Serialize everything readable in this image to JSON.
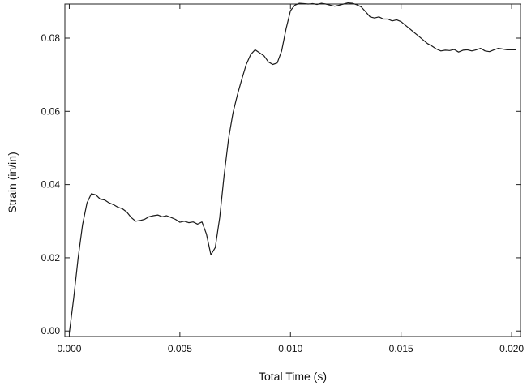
{
  "chart_data": {
    "type": "line",
    "xlabel": "Total Time (s)",
    "ylabel": "Strain (in/in)",
    "xlim": [
      -0.0002,
      0.0204
    ],
    "ylim": [
      -0.0015,
      0.0893
    ],
    "x_ticks": [
      0.0,
      0.005,
      0.01,
      0.015,
      0.02
    ],
    "x_tick_labels": [
      "0.000",
      "0.005",
      "0.010",
      "0.015",
      "0.020"
    ],
    "y_ticks": [
      0.0,
      0.02,
      0.04,
      0.06,
      0.08
    ],
    "y_tick_labels": [
      "0.00",
      "0.02",
      "0.04",
      "0.06",
      "0.08"
    ],
    "grid": false,
    "series": [
      {
        "color": "#1a1a1a",
        "x": [
          0.0,
          0.0002,
          0.0004,
          0.0006,
          0.0008,
          0.001,
          0.0012,
          0.0014,
          0.0016,
          0.0018,
          0.002,
          0.0022,
          0.0024,
          0.0026,
          0.0028,
          0.003,
          0.0032,
          0.0034,
          0.0036,
          0.0038,
          0.004,
          0.0042,
          0.0044,
          0.0046,
          0.0048,
          0.005,
          0.0052,
          0.0054,
          0.0056,
          0.0058,
          0.006,
          0.0062,
          0.0064,
          0.0066,
          0.0068,
          0.007,
          0.0072,
          0.0074,
          0.0076,
          0.0078,
          0.008,
          0.0082,
          0.0084,
          0.0086,
          0.0088,
          0.009,
          0.0092,
          0.0094,
          0.0096,
          0.0098,
          0.01,
          0.0102,
          0.0104,
          0.0106,
          0.0108,
          0.011,
          0.0112,
          0.0114,
          0.0116,
          0.0118,
          0.012,
          0.0122,
          0.0124,
          0.0126,
          0.0128,
          0.013,
          0.0132,
          0.0134,
          0.0136,
          0.0138,
          0.014,
          0.0142,
          0.0144,
          0.0146,
          0.0148,
          0.015,
          0.0152,
          0.0154,
          0.0156,
          0.0158,
          0.016,
          0.0162,
          0.0164,
          0.0166,
          0.0168,
          0.017,
          0.0172,
          0.0174,
          0.0176,
          0.0178,
          0.018,
          0.0182,
          0.0184,
          0.0186,
          0.0188,
          0.019,
          0.0192,
          0.0194,
          0.0196,
          0.0198,
          0.0202
        ],
        "y": [
          -0.0005,
          0.009,
          0.02,
          0.029,
          0.035,
          0.0375,
          0.0372,
          0.036,
          0.0358,
          0.035,
          0.0345,
          0.0338,
          0.0334,
          0.0325,
          0.031,
          0.03,
          0.0302,
          0.0305,
          0.0312,
          0.0315,
          0.0317,
          0.0312,
          0.0315,
          0.031,
          0.0305,
          0.0297,
          0.03,
          0.0296,
          0.0298,
          0.0292,
          0.0298,
          0.0265,
          0.0208,
          0.0228,
          0.031,
          0.0425,
          0.0525,
          0.0595,
          0.0645,
          0.0688,
          0.0728,
          0.0755,
          0.0768,
          0.076,
          0.0752,
          0.0735,
          0.0728,
          0.0732,
          0.0765,
          0.0825,
          0.0875,
          0.089,
          0.0895,
          0.0894,
          0.0893,
          0.0894,
          0.0892,
          0.0895,
          0.0893,
          0.089,
          0.0887,
          0.089,
          0.0893,
          0.0896,
          0.0895,
          0.0891,
          0.0885,
          0.0872,
          0.0858,
          0.0855,
          0.0858,
          0.0852,
          0.0852,
          0.0847,
          0.085,
          0.0845,
          0.0835,
          0.0825,
          0.0815,
          0.0805,
          0.0795,
          0.0785,
          0.0778,
          0.077,
          0.0765,
          0.0767,
          0.0766,
          0.0769,
          0.0762,
          0.0767,
          0.0768,
          0.0765,
          0.0768,
          0.0772,
          0.0765,
          0.0763,
          0.0768,
          0.0772,
          0.077,
          0.0768,
          0.0768
        ]
      }
    ]
  }
}
